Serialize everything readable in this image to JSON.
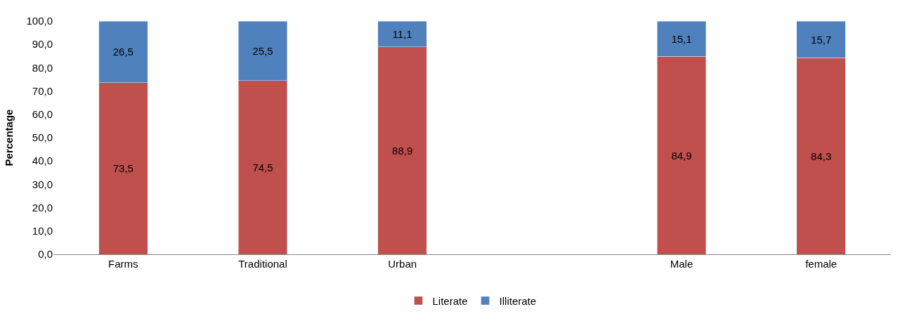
{
  "chart_data": {
    "type": "bar",
    "stacked": true,
    "ylabel": "Percentage",
    "categories": [
      "Farms",
      "Traditional",
      "Urban",
      null,
      "Male",
      "female"
    ],
    "series": [
      {
        "name": "Literate",
        "color": "#c0504d",
        "values": [
          73.5,
          74.5,
          88.9,
          null,
          84.9,
          84.3
        ],
        "value_labels": [
          "73,5",
          "74,5",
          "88,9",
          null,
          "84,9",
          "84,3"
        ]
      },
      {
        "name": "Illiterate",
        "color": "#4f81bd",
        "values": [
          26.5,
          25.5,
          11.1,
          null,
          15.1,
          15.7
        ],
        "value_labels": [
          "26,5",
          "25,5",
          "11,1",
          null,
          "15,1",
          "15,7"
        ]
      }
    ],
    "ylim": [
      0,
      100
    ],
    "yticks": [
      {
        "value": 0,
        "label": "0,0"
      },
      {
        "value": 10,
        "label": "10,0"
      },
      {
        "value": 20,
        "label": "20,0"
      },
      {
        "value": 30,
        "label": "30,0"
      },
      {
        "value": 40,
        "label": "40,0"
      },
      {
        "value": 50,
        "label": "50,0"
      },
      {
        "value": 60,
        "label": "60,0"
      },
      {
        "value": 70,
        "label": "70,0"
      },
      {
        "value": 80,
        "label": "80,0"
      },
      {
        "value": 90,
        "label": "90,0"
      },
      {
        "value": 100,
        "label": "100,0"
      }
    ],
    "legend": "bottom"
  }
}
